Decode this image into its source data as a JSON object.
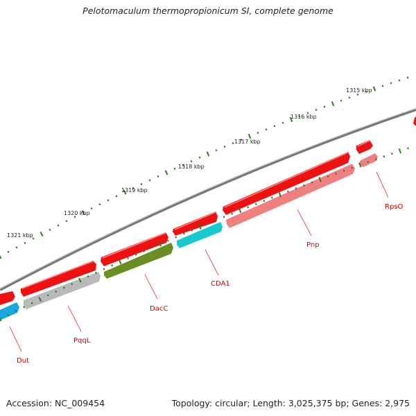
{
  "title": "Pelotomaculum thermopropionicum SI, complete genome",
  "accession": "Accession: NC_009454",
  "topology": "Topology: circular; Length: 3,025,375 bp; Genes: 2,975",
  "colors": {
    "backbone": "#7a7a7a",
    "ticks": "#2e7d20",
    "cds": "#ee1111",
    "leader_line": "#dd2222",
    "label": "#d00000"
  },
  "scale": {
    "labels": [
      "1315 kbp",
      "1316 kbp",
      "1317 kbp",
      "1318 kbp",
      "1319 kbp",
      "1320 kbp",
      "1321 kbp"
    ]
  },
  "features": [
    {
      "name": "RpsO",
      "color": "#f08080",
      "direction": "reverse"
    },
    {
      "name": "Pnp",
      "color": "#f08080",
      "direction": "reverse"
    },
    {
      "name": "CDA1",
      "color": "#19c9d0",
      "direction": "reverse"
    },
    {
      "name": "DacC",
      "color": "#6b8e23",
      "direction": "reverse"
    },
    {
      "name": "PqqL",
      "color": "#b9b9b9",
      "direction": "reverse"
    },
    {
      "name": "Dut",
      "color": "#1aa7e0",
      "direction": "reverse"
    }
  ]
}
